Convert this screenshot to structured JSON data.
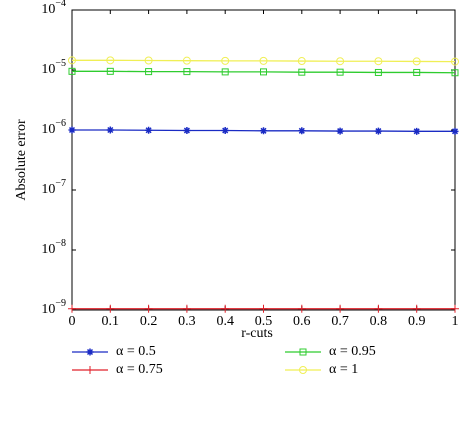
{
  "chart_data": {
    "type": "line",
    "x_label": "r-cuts",
    "y_label": "Absolute error",
    "log_y": true,
    "x": [
      0,
      0.1,
      0.2,
      0.3,
      0.4,
      0.5,
      0.6,
      0.7,
      0.8,
      0.9,
      1
    ],
    "xlim": [
      0,
      1
    ],
    "xticks": [
      0,
      0.1,
      0.2,
      0.3,
      0.4,
      0.5,
      0.6,
      0.7,
      0.8,
      0.9,
      1
    ],
    "ylim": [
      1e-09,
      0.0001
    ],
    "yticks": [
      {
        "value": 1e-09,
        "label": "10−9"
      },
      {
        "value": 1e-08,
        "label": "10−8"
      },
      {
        "value": 1e-07,
        "label": "10−7"
      },
      {
        "value": 1e-06,
        "label": "10−6"
      },
      {
        "value": 1e-05,
        "label": "10−5"
      },
      {
        "value": 0.0001,
        "label": "10−4"
      }
    ],
    "series": [
      {
        "name": "α = 0.5",
        "color": "#1a2bc4",
        "marker": "star",
        "values": [
          1e-06,
          1e-06,
          9.9e-07,
          9.8e-07,
          9.8e-07,
          9.7e-07,
          9.7e-07,
          9.6e-07,
          9.6e-07,
          9.5e-07,
          9.5e-07
        ]
      },
      {
        "name": "α = 0.75",
        "color": "#e0202a",
        "marker": "plus",
        "values": [
          1.05e-09,
          1.05e-09,
          1.05e-09,
          1.05e-09,
          1.05e-09,
          1.05e-09,
          1.05e-09,
          1.05e-09,
          1.05e-09,
          1.05e-09,
          1.05e-09
        ]
      },
      {
        "name": "α = 0.95",
        "color": "#2fcc2f",
        "marker": "square",
        "values": [
          9.5e-06,
          9.5e-06,
          9.4e-06,
          9.4e-06,
          9.3e-06,
          9.3e-06,
          9.2e-06,
          9.2e-06,
          9.1e-06,
          9.1e-06,
          9e-06
        ]
      },
      {
        "name": "α = 1",
        "color": "#f0ef55",
        "marker": "circle",
        "values": [
          1.45e-05,
          1.45e-05,
          1.44e-05,
          1.43e-05,
          1.42e-05,
          1.42e-05,
          1.41e-05,
          1.4e-05,
          1.4e-05,
          1.39e-05,
          1.38e-05
        ]
      }
    ]
  }
}
